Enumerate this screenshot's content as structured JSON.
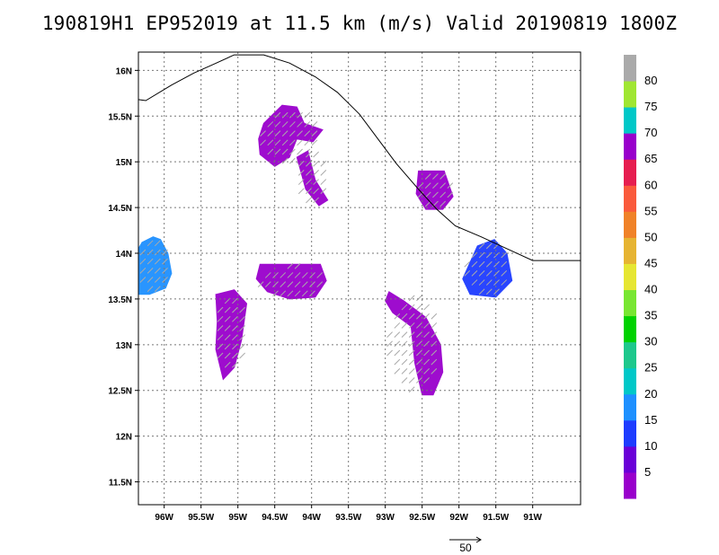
{
  "title": "190819H1 EP952019 at 11.5 km (m/s) Valid 20190819 1800Z",
  "vector_reference": {
    "label": "50"
  },
  "colors": {
    "coastline": "#000000",
    "grid": "#777777",
    "wind_arrows": "#aaaaaa"
  },
  "chart_data": {
    "type": "heatmap",
    "title": "190819H1 EP952019 at 11.5 km (m/s) Valid 20190819 1800Z",
    "xlim": [
      -96.35,
      -90.35
    ],
    "ylim": [
      11.25,
      16.2
    ],
    "grid": true,
    "x_ticks": [
      {
        "value": -96.0,
        "label": "96W"
      },
      {
        "value": -95.5,
        "label": "95.5W"
      },
      {
        "value": -95.0,
        "label": "95W"
      },
      {
        "value": -94.5,
        "label": "94.5W"
      },
      {
        "value": -94.0,
        "label": "94W"
      },
      {
        "value": -93.5,
        "label": "93.5W"
      },
      {
        "value": -93.0,
        "label": "93W"
      },
      {
        "value": -92.5,
        "label": "92.5W"
      },
      {
        "value": -92.0,
        "label": "92W"
      },
      {
        "value": -91.5,
        "label": "91.5W"
      },
      {
        "value": -91.0,
        "label": "91W"
      }
    ],
    "y_ticks": [
      {
        "value": 11.5,
        "label": "11.5N"
      },
      {
        "value": 12.0,
        "label": "12N"
      },
      {
        "value": 12.5,
        "label": "12.5N"
      },
      {
        "value": 13.0,
        "label": "13N"
      },
      {
        "value": 13.5,
        "label": "13.5N"
      },
      {
        "value": 14.0,
        "label": "14N"
      },
      {
        "value": 14.5,
        "label": "14.5N"
      },
      {
        "value": 15.0,
        "label": "15N"
      },
      {
        "value": 15.5,
        "label": "15.5N"
      },
      {
        "value": 16.0,
        "label": "16N"
      }
    ],
    "colorbar": {
      "labels": [
        "5",
        "10",
        "15",
        "20",
        "25",
        "30",
        "35",
        "40",
        "45",
        "50",
        "55",
        "60",
        "65",
        "70",
        "75",
        "80"
      ],
      "colors": [
        "#9900cc",
        "#6a00d8",
        "#1e3cff",
        "#1e90ff",
        "#00c8c8",
        "#1ec88c",
        "#00d200",
        "#78e632",
        "#e6e632",
        "#e6b432",
        "#f08228",
        "#fa5a3c",
        "#e61e50",
        "#9900cc",
        "#00c8c8",
        "#a0e632",
        "#aaaaaa"
      ]
    },
    "coastline": [
      [
        -96.35,
        15.68
      ],
      [
        -96.25,
        15.67
      ],
      [
        -95.9,
        15.84
      ],
      [
        -95.6,
        15.97
      ],
      [
        -95.35,
        16.06
      ],
      [
        -95.05,
        16.17
      ],
      [
        -94.65,
        16.17
      ],
      [
        -94.3,
        16.08
      ],
      [
        -93.95,
        15.93
      ],
      [
        -93.65,
        15.76
      ],
      [
        -93.35,
        15.52
      ],
      [
        -93.1,
        15.25
      ],
      [
        -92.85,
        14.98
      ],
      [
        -92.55,
        14.7
      ],
      [
        -92.3,
        14.48
      ],
      [
        -92.05,
        14.3
      ],
      [
        -91.7,
        14.18
      ],
      [
        -91.35,
        14.05
      ],
      [
        -91.0,
        13.92
      ],
      [
        -90.35,
        13.92
      ]
    ],
    "wind_regions": [
      {
        "name": "western-coast-patch",
        "color": "#1e90ff",
        "polygon": [
          [
            -96.3,
            14.12
          ],
          [
            -96.15,
            14.18
          ],
          [
            -96.05,
            14.15
          ],
          [
            -95.95,
            14.0
          ],
          [
            -95.9,
            13.78
          ],
          [
            -95.98,
            13.62
          ],
          [
            -96.2,
            13.55
          ],
          [
            -96.35,
            13.55
          ],
          [
            -96.35,
            14.05
          ]
        ]
      },
      {
        "name": "northern-cloud",
        "color": "#9900cc",
        "polygon": [
          [
            -94.65,
            15.42
          ],
          [
            -94.4,
            15.62
          ],
          [
            -94.2,
            15.6
          ],
          [
            -94.1,
            15.42
          ],
          [
            -93.85,
            15.35
          ],
          [
            -93.98,
            15.22
          ],
          [
            -94.2,
            15.25
          ],
          [
            -94.3,
            15.05
          ],
          [
            -94.5,
            14.95
          ],
          [
            -94.7,
            15.08
          ],
          [
            -94.72,
            15.25
          ]
        ]
      },
      {
        "name": "northern-cloud-tail",
        "color": "#9900cc",
        "polygon": [
          [
            -94.2,
            15.05
          ],
          [
            -94.05,
            15.12
          ],
          [
            -93.95,
            14.8
          ],
          [
            -93.78,
            14.58
          ],
          [
            -93.9,
            14.52
          ],
          [
            -94.08,
            14.7
          ]
        ]
      },
      {
        "name": "central-band",
        "color": "#9900cc",
        "polygon": [
          [
            -94.7,
            13.88
          ],
          [
            -93.88,
            13.88
          ],
          [
            -93.8,
            13.7
          ],
          [
            -93.95,
            13.52
          ],
          [
            -94.3,
            13.5
          ],
          [
            -94.6,
            13.58
          ],
          [
            -94.75,
            13.72
          ]
        ]
      },
      {
        "name": "coastal-storm",
        "color": "#9900cc",
        "polygon": [
          [
            -92.55,
            14.9
          ],
          [
            -92.2,
            14.9
          ],
          [
            -92.08,
            14.62
          ],
          [
            -92.22,
            14.48
          ],
          [
            -92.45,
            14.48
          ],
          [
            -92.58,
            14.65
          ]
        ]
      },
      {
        "name": "eastern-ring",
        "color": "#1e3cff",
        "polygon": [
          [
            -91.75,
            14.08
          ],
          [
            -91.52,
            14.15
          ],
          [
            -91.35,
            14.0
          ],
          [
            -91.28,
            13.7
          ],
          [
            -91.5,
            13.52
          ],
          [
            -91.85,
            13.55
          ],
          [
            -91.95,
            13.72
          ]
        ]
      },
      {
        "name": "southern-band",
        "color": "#9900cc",
        "polygon": [
          [
            -92.95,
            13.58
          ],
          [
            -92.75,
            13.48
          ],
          [
            -92.45,
            13.3
          ],
          [
            -92.25,
            13.0
          ],
          [
            -92.22,
            12.7
          ],
          [
            -92.35,
            12.45
          ],
          [
            -92.5,
            12.45
          ],
          [
            -92.6,
            12.8
          ],
          [
            -92.65,
            13.2
          ],
          [
            -92.9,
            13.35
          ],
          [
            -93.0,
            13.48
          ]
        ]
      },
      {
        "name": "southwest-fragments",
        "color": "#9900cc",
        "polygon": [
          [
            -95.3,
            13.55
          ],
          [
            -95.05,
            13.6
          ],
          [
            -94.88,
            13.45
          ],
          [
            -94.95,
            13.05
          ],
          [
            -95.05,
            12.75
          ],
          [
            -95.2,
            12.62
          ],
          [
            -95.3,
            12.95
          ],
          [
            -95.28,
            13.25
          ]
        ]
      }
    ]
  }
}
